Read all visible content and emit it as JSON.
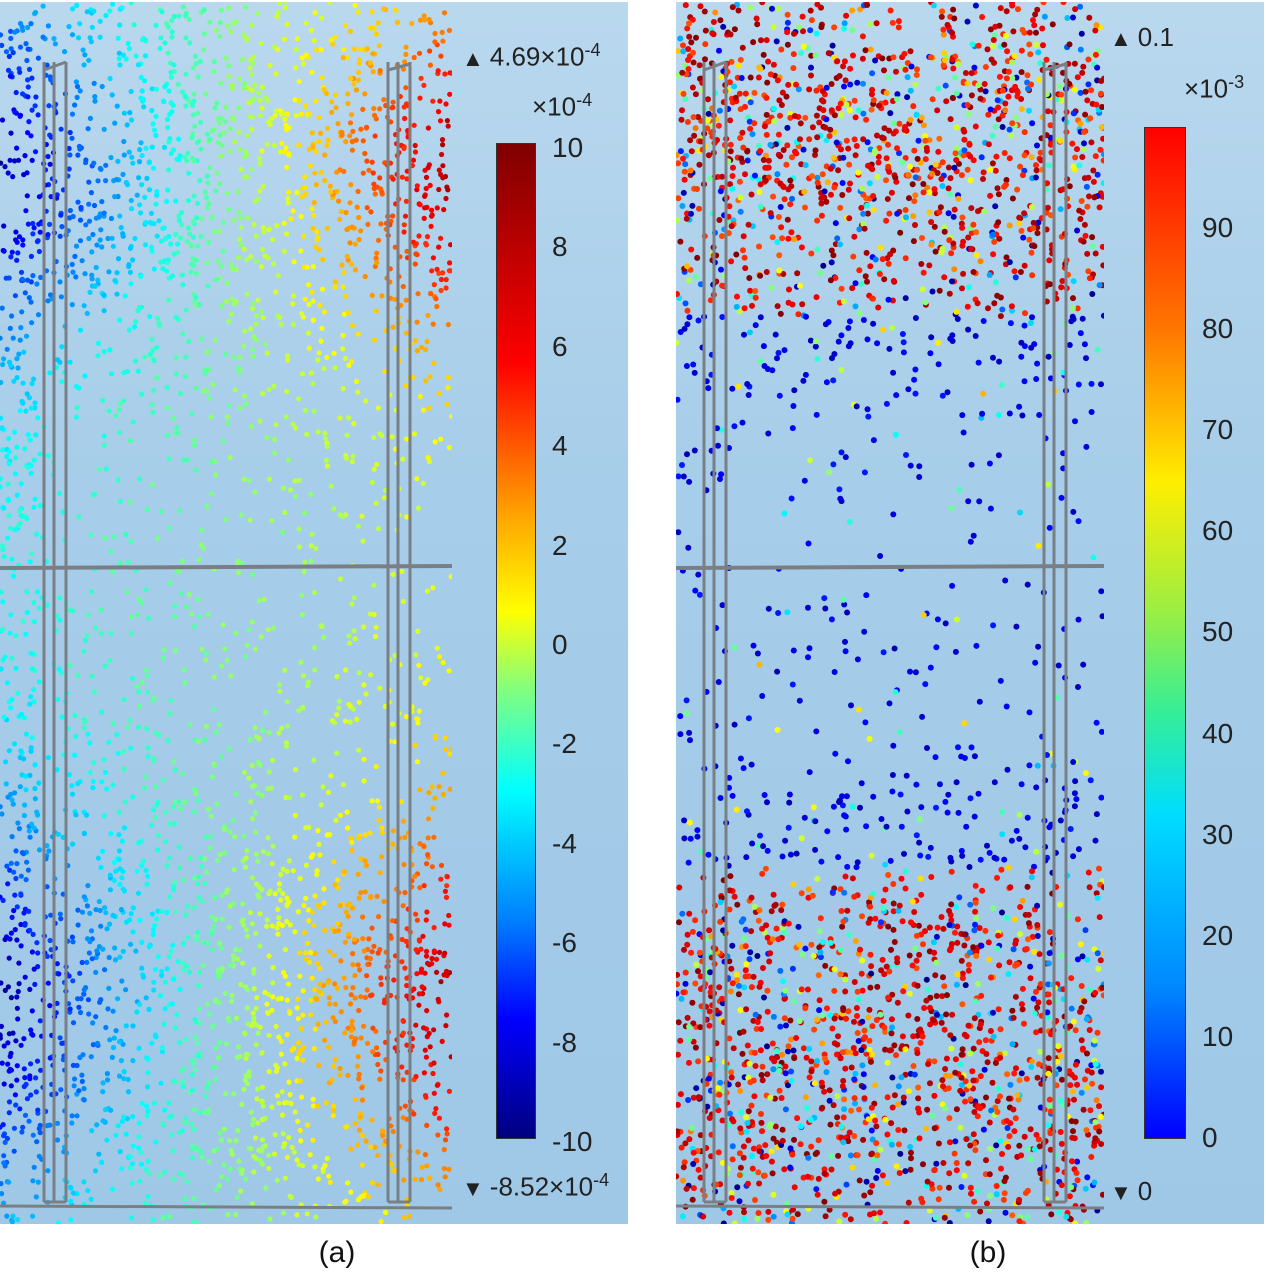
{
  "figure": {
    "panels": [
      {
        "id": "a",
        "caption": "(a)",
        "max_label": "4.69×10",
        "max_exp": "-4",
        "min_label": "-8.52×10",
        "min_exp": "-4",
        "multiplier": "×10",
        "multiplier_exp": "-4",
        "colorbar_ticks": [
          "10",
          "8",
          "6",
          "4",
          "2",
          "0",
          "-2",
          "-4",
          "-6",
          "-8",
          "-10"
        ]
      },
      {
        "id": "b",
        "caption": "(b)",
        "max_label": "0.1",
        "min_label": "0",
        "multiplier": "×10",
        "multiplier_exp": "-3",
        "colorbar_ticks": [
          "90",
          "80",
          "70",
          "60",
          "50",
          "40",
          "30",
          "20",
          "10",
          "0"
        ]
      }
    ],
    "colors": {
      "frame": "#7a7f85",
      "background": "#a6cde9"
    }
  }
}
